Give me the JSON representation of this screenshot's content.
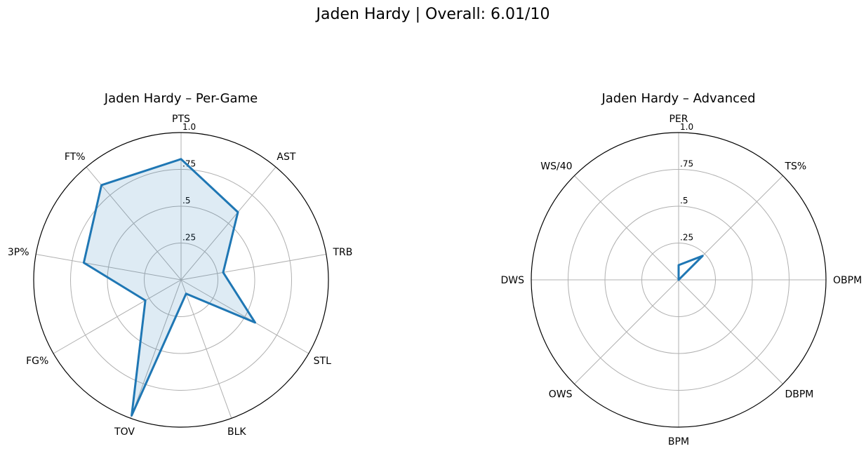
{
  "figure": {
    "title": "Jaden Hardy | Overall: 6.01/10",
    "colors": {
      "series": "#1f77b4",
      "fill": "#1f77b4",
      "grid": "#b0b0b0",
      "frame": "#000000"
    }
  },
  "chart_data": [
    {
      "type": "radar",
      "title": "Jaden Hardy – Per-Game",
      "categories": [
        "PTS",
        "AST",
        "TRB",
        "STL",
        "BLK",
        "TOV",
        "FG%",
        "3P%",
        "FT%"
      ],
      "radial_ticks": [
        0.25,
        0.5,
        0.75,
        1.0
      ],
      "radial_tick_labels": [
        ".25",
        ".5",
        ".75",
        "1.0"
      ],
      "rlim": [
        0,
        1
      ],
      "grid": true,
      "filled": true,
      "series": [
        {
          "values": [
            0.82,
            0.6,
            0.29,
            0.58,
            0.1,
            0.98,
            0.28,
            0.67,
            0.84
          ]
        }
      ]
    },
    {
      "type": "radar",
      "title": "Jaden Hardy – Advanced",
      "categories": [
        "PER",
        "TS%",
        "OBPM",
        "DBPM",
        "BPM",
        "OWS",
        "DWS",
        "WS/40"
      ],
      "radial_ticks": [
        0.25,
        0.5,
        0.75,
        1.0
      ],
      "radial_tick_labels": [
        ".25",
        ".5",
        ".75",
        "1.0"
      ],
      "rlim": [
        0,
        1
      ],
      "grid": true,
      "filled": false,
      "series": [
        {
          "values": [
            0.1,
            0.23,
            0.0,
            0.0,
            0.0,
            0.0,
            0.0,
            0.0
          ]
        }
      ]
    }
  ]
}
